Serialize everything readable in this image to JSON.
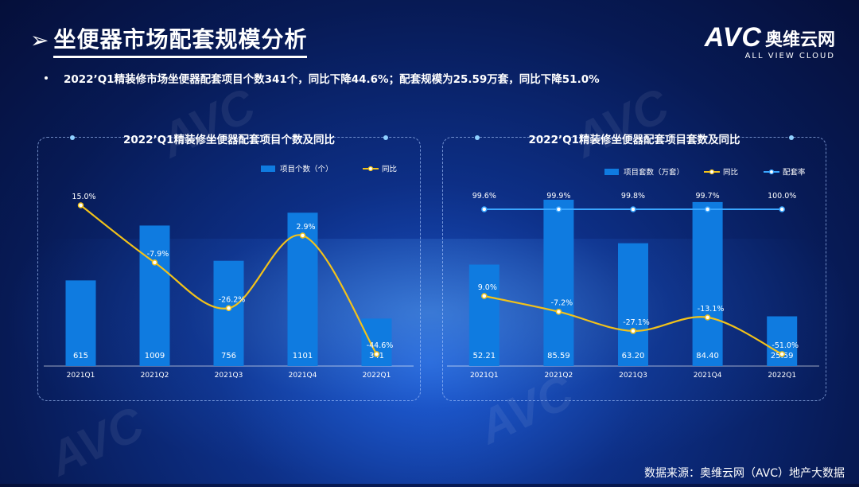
{
  "title": "坐便器市场配套规模分析",
  "title_arrow": "➢",
  "brand": {
    "logo_text": "AVC",
    "name_cn": "奥维云网",
    "name_en": "ALL VIEW CLOUD"
  },
  "summary": "2022’Q1精装修市场坐便器配套项目个数341个，同比下降44.6%；配套规模为25.59万套，同比下降51.0%",
  "source": "数据来源：奥维云网（AVC）地产大数据",
  "colors": {
    "bar": "#0f7be0",
    "line": "#f2c21a",
    "rate_line": "#3aa6ff",
    "background": "#0a2a7a"
  },
  "chart_data": [
    {
      "type": "bar",
      "title": "2022’Q1精装修坐便器配套项目个数及同比",
      "categories": [
        "2021Q1",
        "2021Q2",
        "2021Q3",
        "2021Q4",
        "2022Q1"
      ],
      "series": [
        {
          "name": "项目个数（个）",
          "type": "bar",
          "values": [
            615,
            1009,
            756,
            1101,
            341
          ],
          "labels": [
            "615",
            "1009",
            "756",
            "1101",
            "341"
          ]
        },
        {
          "name": "同比",
          "type": "line",
          "values": [
            15.0,
            -7.9,
            -26.2,
            2.9,
            -44.6
          ],
          "labels": [
            "15.0%",
            "-7.9%",
            "-26.2%",
            "2.9%",
            "-44.6%"
          ]
        }
      ],
      "legend": "top-right"
    },
    {
      "type": "bar",
      "title": "2022’Q1精装修坐便器配套项目套数及同比",
      "categories": [
        "2021Q1",
        "2021Q2",
        "2021Q3",
        "2021Q4",
        "2022Q1"
      ],
      "series": [
        {
          "name": "项目套数（万套）",
          "type": "bar",
          "values": [
            52.21,
            85.59,
            63.2,
            84.4,
            25.59
          ],
          "labels": [
            "52.21",
            "85.59",
            "63.20",
            "84.40",
            "25.59"
          ]
        },
        {
          "name": "同比",
          "type": "line",
          "values": [
            9.0,
            -7.2,
            -27.1,
            -13.1,
            -51.0
          ],
          "labels": [
            "9.0%",
            "-7.2%",
            "-27.1%",
            "-13.1%",
            "-51.0%"
          ]
        },
        {
          "name": "配套率",
          "type": "line",
          "values": [
            99.6,
            99.9,
            99.8,
            99.7,
            100.0
          ],
          "labels": [
            "99.6%",
            "99.9%",
            "99.8%",
            "99.7%",
            "100.0%"
          ]
        }
      ],
      "legend": "top-right"
    }
  ]
}
